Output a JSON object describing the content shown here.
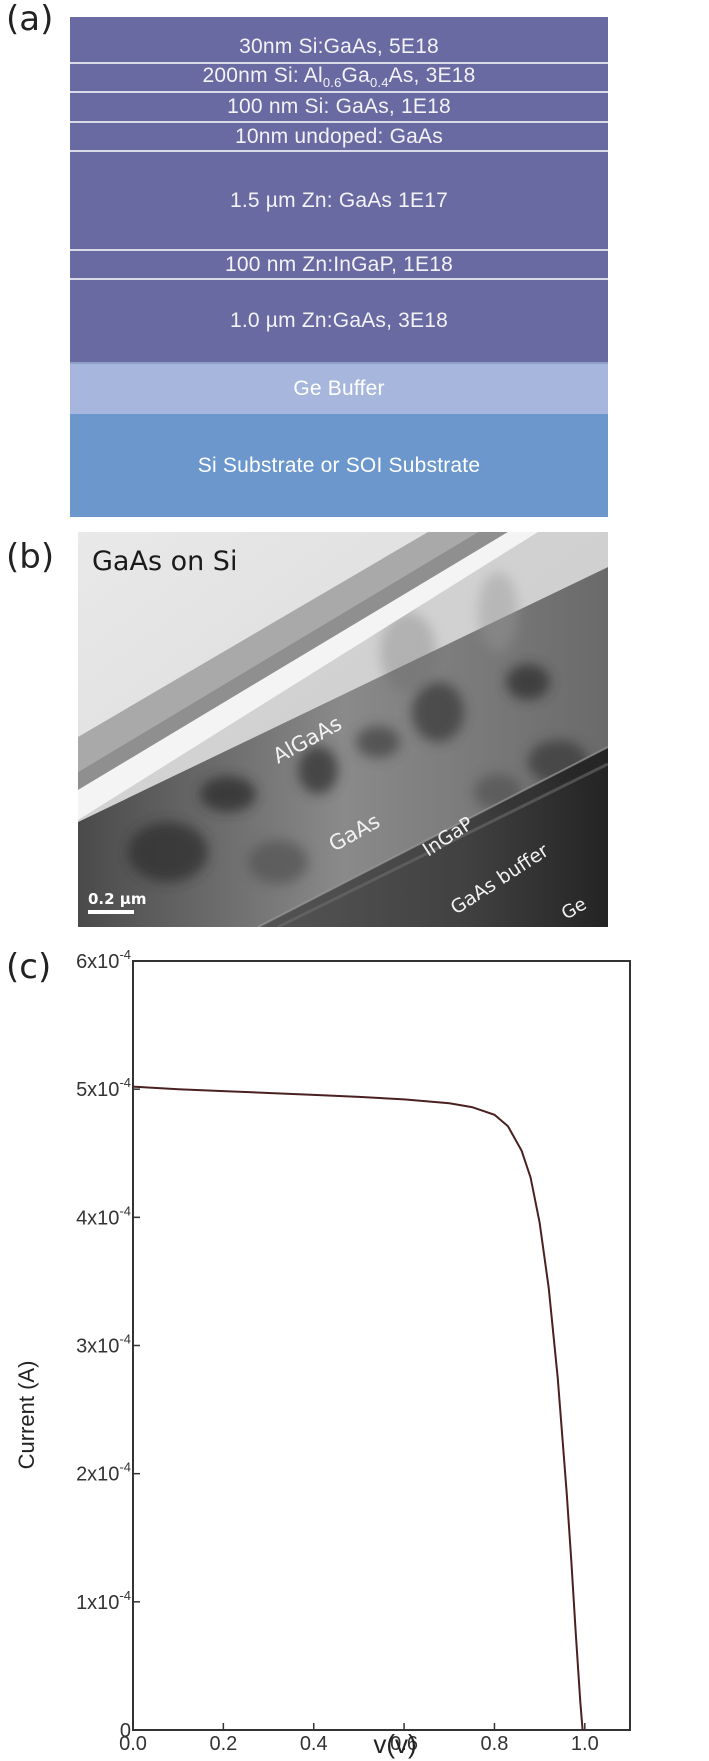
{
  "panels": {
    "a": "(a)",
    "b": "(b)",
    "c": "(c)"
  },
  "layer_stack": {
    "layers": [
      {
        "text": "30nm Si:GaAs, 5E18"
      },
      {
        "text_pre": "200nm Si: Al",
        "sub1": "0.6",
        "mid": "Ga",
        "sub2": "0.4",
        "text_post": "As, 3E18"
      },
      {
        "text": "100 nm Si: GaAs, 1E18"
      },
      {
        "text": "10nm undoped: GaAs"
      },
      {
        "text": "1.5 µm Zn: GaAs 1E17"
      },
      {
        "text": "100 nm Zn:InGaP, 1E18"
      },
      {
        "text": "1.0 µm Zn:GaAs, 3E18"
      },
      {
        "text": "Ge Buffer"
      },
      {
        "text": "Si Substrate or SOI Substrate"
      }
    ],
    "colors": {
      "epi": "#6a6aa3",
      "ge_buffer": "#a7b6dc",
      "substrate": "#6b97cd"
    }
  },
  "tem": {
    "title": "GaAs on Si",
    "labels": {
      "algaas": "AlGaAs",
      "gaas": "GaAs",
      "ingap": "InGaP",
      "gaas_buffer": "GaAs buffer",
      "ge": "Ge"
    },
    "scale_bar": "0.2 µm"
  },
  "chart_data": {
    "type": "line",
    "xlabel": "v(v)",
    "ylabel": "Current (A)",
    "xlim": [
      0.0,
      1.1
    ],
    "ylim": [
      0,
      0.0006
    ],
    "x_ticks": [
      "0.0",
      "0.2",
      "0.4",
      "0.6",
      "0.8",
      "1.0"
    ],
    "y_ticks": [
      {
        "mant": "0",
        "exp": ""
      },
      {
        "mant": "1x10",
        "exp": "-4"
      },
      {
        "mant": "2x10",
        "exp": "-4"
      },
      {
        "mant": "3x10",
        "exp": "-4"
      },
      {
        "mant": "4x10",
        "exp": "-4"
      },
      {
        "mant": "5x10",
        "exp": "-4"
      },
      {
        "mant": "6x10",
        "exp": "-4"
      }
    ],
    "series": [
      {
        "x": [
          0.0,
          0.1,
          0.2,
          0.3,
          0.4,
          0.5,
          0.6,
          0.7,
          0.75,
          0.8,
          0.83,
          0.86,
          0.88,
          0.9,
          0.92,
          0.94,
          0.96,
          0.97,
          0.98,
          0.99,
          0.995
        ],
        "y": [
          0.000502,
          0.0005,
          0.0004985,
          0.000497,
          0.0004955,
          0.000494,
          0.000492,
          0.000489,
          0.000486,
          0.00048,
          0.000471,
          0.000452,
          0.000431,
          0.000396,
          0.000345,
          0.000275,
          0.000185,
          0.000132,
          7.5e-05,
          2.2e-05,
          0.0
        ]
      }
    ],
    "colors": {
      "line": "#4a2020"
    }
  }
}
